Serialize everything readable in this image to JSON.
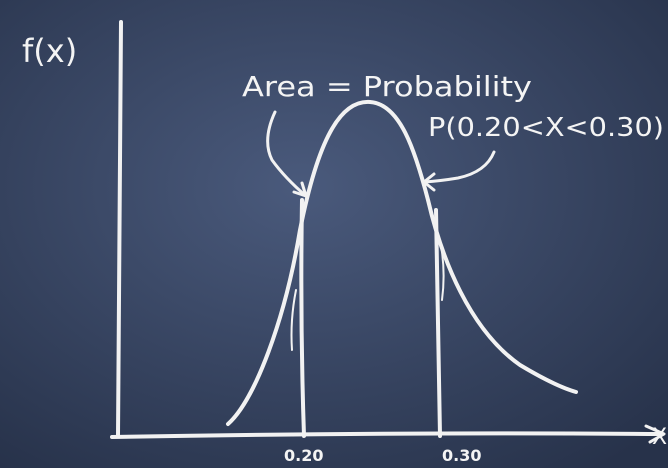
{
  "labels": {
    "y_axis": "f(x)",
    "area_note": "Area = Probability",
    "probability_note": "P(0.20<X<0.30)",
    "lower_bound": "0.20",
    "upper_bound": "0.30",
    "x_axis": "X"
  }
}
